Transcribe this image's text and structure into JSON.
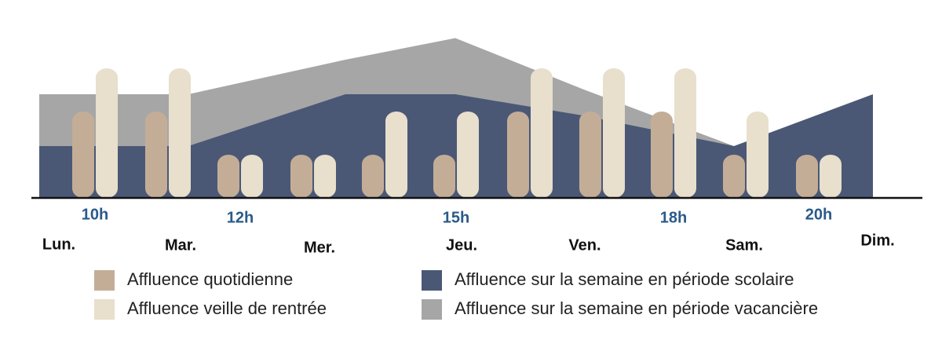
{
  "chart_data": [
    {
      "type": "area",
      "categories": [
        "Lun.",
        "Mar.",
        "Mer.",
        "Jeu.",
        "Ven.",
        "Sam.",
        "Dim."
      ],
      "series": [
        {
          "name": "Affluence sur la semaine en période vacancière",
          "color": "#a6a6a6",
          "values": [
            2.4,
            2.4,
            3.2,
            3.7,
            2.5,
            1.2,
            1.2
          ]
        },
        {
          "name": "Affluence sur la semaine en période scolaire",
          "color": "#4a5876",
          "values": [
            1.2,
            1.2,
            2.4,
            2.4,
            1.9,
            1.2,
            2.4
          ]
        }
      ]
    },
    {
      "type": "bar",
      "categories": [
        "10h",
        null,
        "12h",
        null,
        null,
        "15h",
        null,
        null,
        "18h",
        null,
        "20h"
      ],
      "series": [
        {
          "name": "Affluence quotidienne",
          "color": "#c4ad97",
          "values": [
            2,
            2,
            1,
            1,
            1,
            1,
            2,
            2,
            2,
            1,
            1
          ]
        },
        {
          "name": "Affluence veille de rentrée",
          "color": "#e8dfcc",
          "values": [
            3,
            3,
            1,
            1,
            2,
            2,
            3,
            3,
            3,
            2,
            1
          ]
        }
      ]
    }
  ]
}
